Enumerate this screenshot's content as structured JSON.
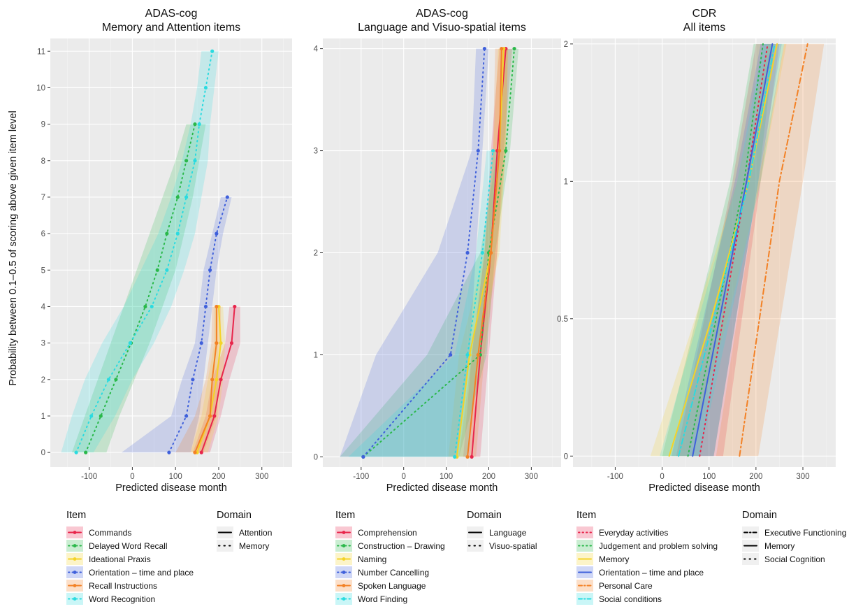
{
  "ylabel": "Probability between 0.1–0.5 of scoring above given item level",
  "legend_item_title": "Item",
  "legend_domain_title": "Domain",
  "chart_data": [
    {
      "type": "line",
      "title_line1": "ADAS-cog",
      "title_line2": "Memory and Attention items",
      "xlabel": "Predicted disease month",
      "xlim": [
        -190,
        370
      ],
      "xticks": [
        -100,
        0,
        100,
        200,
        300
      ],
      "ylim": [
        -0.4,
        11.35
      ],
      "yticks": [
        0,
        1,
        2,
        3,
        4,
        5,
        6,
        7,
        8,
        9,
        10,
        11
      ],
      "ytick_labels": [
        "0",
        "1",
        "2",
        "3",
        "4",
        "5",
        "6",
        "7",
        "8",
        "9",
        "10",
        "11"
      ],
      "grid": true,
      "domains": [
        {
          "name": "Attention",
          "dash": "solid"
        },
        {
          "name": "Memory",
          "dash": "dotted"
        }
      ],
      "series": [
        {
          "name": "Commands",
          "color": "#e8254b",
          "dash": "solid",
          "levels": [
            0,
            1,
            2,
            3,
            4
          ],
          "x": [
            160,
            190,
            205,
            230,
            237
          ],
          "lo": [
            140,
            170,
            185,
            215,
            225
          ],
          "hi": [
            180,
            205,
            225,
            250,
            250
          ]
        },
        {
          "name": "Delayed Word Recall",
          "color": "#2ab84a",
          "dash": "dotted",
          "levels": [
            0,
            1,
            2,
            3,
            4,
            5,
            6,
            7,
            8,
            9
          ],
          "x": [
            -108,
            -73,
            -38,
            -3,
            30,
            58,
            80,
            105,
            125,
            145
          ],
          "lo": [
            -140,
            -110,
            -80,
            -50,
            -20,
            10,
            40,
            70,
            100,
            125
          ],
          "hi": [
            -60,
            -30,
            5,
            40,
            70,
            100,
            120,
            140,
            155,
            170
          ]
        },
        {
          "name": "Ideational Praxis",
          "color": "#f5d327",
          "dash": "solid",
          "levels": [
            0,
            1,
            2,
            3,
            4
          ],
          "x": [
            150,
            180,
            195,
            205,
            200
          ],
          "lo": [
            135,
            160,
            175,
            190,
            190
          ],
          "hi": [
            175,
            200,
            210,
            215,
            210
          ]
        },
        {
          "name": "Orientation – time and place",
          "color": "#3f60db",
          "dash": "dotted",
          "levels": [
            0,
            1,
            2,
            3,
            4,
            5,
            6,
            7
          ],
          "x": [
            85,
            125,
            140,
            160,
            170,
            180,
            195,
            220
          ],
          "lo": [
            -25,
            90,
            115,
            145,
            155,
            165,
            185,
            205
          ],
          "hi": [
            135,
            155,
            165,
            175,
            185,
            195,
            210,
            230
          ]
        },
        {
          "name": "Recall Instructions",
          "color": "#f38125",
          "dash": "solid",
          "levels": [
            0,
            1,
            2,
            3,
            4
          ],
          "x": [
            145,
            180,
            185,
            195,
            195
          ],
          "lo": [
            100,
            145,
            170,
            183,
            185
          ],
          "hi": [
            165,
            195,
            200,
            205,
            205
          ]
        },
        {
          "name": "Word Recognition",
          "color": "#2adbe0",
          "dash": "dotted",
          "levels": [
            0,
            1,
            2,
            3,
            4,
            5,
            6,
            7,
            8,
            9,
            10,
            11
          ],
          "x": [
            -130,
            -95,
            -55,
            -5,
            45,
            80,
            105,
            125,
            145,
            155,
            170,
            185
          ],
          "lo": [
            -165,
            -140,
            -110,
            -70,
            -20,
            20,
            60,
            90,
            115,
            135,
            150,
            160
          ],
          "hi": [
            -90,
            -40,
            0,
            50,
            90,
            120,
            145,
            160,
            175,
            180,
            190,
            200
          ]
        }
      ]
    },
    {
      "type": "line",
      "title_line1": "ADAS-cog",
      "title_line2": "Language and Visuo-spatial items",
      "xlabel": "Predicted disease month",
      "xlim": [
        -190,
        370
      ],
      "xticks": [
        -100,
        0,
        100,
        200,
        300
      ],
      "ylim": [
        -0.1,
        4.1
      ],
      "yticks": [
        0,
        1,
        2,
        3,
        4
      ],
      "ytick_labels": [
        "0",
        "1",
        "2",
        "3",
        "4"
      ],
      "grid": true,
      "domains": [
        {
          "name": "Language",
          "dash": "solid"
        },
        {
          "name": "Visuo-spatial",
          "dash": "dotted"
        }
      ],
      "series": [
        {
          "name": "Comprehension",
          "color": "#e8254b",
          "dash": "solid",
          "levels": [
            0,
            1,
            2,
            3,
            4
          ],
          "x": [
            160,
            180,
            205,
            220,
            240
          ],
          "lo": [
            140,
            160,
            190,
            205,
            225
          ],
          "hi": [
            180,
            200,
            220,
            235,
            255
          ]
        },
        {
          "name": "Construction – Drawing",
          "color": "#2ab84a",
          "dash": "dotted",
          "levels": [
            0,
            1,
            2,
            3,
            4
          ],
          "x": [
            -95,
            180,
            200,
            240,
            260
          ],
          "lo": [
            -150,
            55,
            180,
            220,
            240
          ],
          "hi": [
            130,
            195,
            215,
            250,
            270
          ]
        },
        {
          "name": "Naming",
          "color": "#f5d327",
          "dash": "solid",
          "levels": [
            0,
            1,
            2,
            3,
            4
          ],
          "x": [
            125,
            155,
            205,
            225,
            235
          ],
          "lo": [
            105,
            130,
            190,
            210,
            222
          ],
          "hi": [
            150,
            175,
            225,
            240,
            245
          ]
        },
        {
          "name": "Number Cancelling",
          "color": "#3f60db",
          "dash": "dotted",
          "levels": [
            0,
            1,
            2,
            3,
            4
          ],
          "x": [
            -95,
            110,
            150,
            175,
            190
          ],
          "lo": [
            -150,
            -65,
            80,
            160,
            170
          ],
          "hi": [
            125,
            155,
            170,
            185,
            200
          ]
        },
        {
          "name": "Spoken Language",
          "color": "#f38125",
          "dash": "solid",
          "levels": [
            0,
            1,
            2,
            3,
            4
          ],
          "x": [
            150,
            175,
            205,
            225,
            230
          ],
          "lo": [
            130,
            160,
            190,
            210,
            215
          ],
          "hi": [
            170,
            190,
            220,
            240,
            245
          ]
        },
        {
          "name": "Word Finding",
          "color": "#2adbe0",
          "dash": "dotted",
          "levels": [
            0,
            1,
            2,
            3
          ],
          "x": [
            120,
            150,
            185,
            210
          ],
          "lo": [
            -130,
            120,
            170,
            195
          ],
          "hi": [
            150,
            175,
            200,
            225
          ]
        }
      ]
    },
    {
      "type": "line",
      "title_line1": "CDR",
      "title_line2": "All items",
      "xlabel": "Predicted disease month",
      "xlim": [
        -190,
        370
      ],
      "xticks": [
        -100,
        0,
        100,
        200,
        300
      ],
      "ylim": [
        -0.04,
        2.04
      ],
      "yticks": [
        0,
        0.5,
        1,
        2
      ],
      "ytick_labels": [
        "0",
        "0.5",
        "1",
        "2"
      ],
      "grid": true,
      "domains": [
        {
          "name": "Executive Functioning",
          "dash": "dashdot"
        },
        {
          "name": "Memory",
          "dash": "solid"
        },
        {
          "name": "Social Cognition",
          "dash": "dotted"
        }
      ],
      "series": [
        {
          "name": "Everyday activities",
          "color": "#e8254b",
          "dash": "dotted",
          "levels": [
            0,
            1,
            2
          ],
          "x": [
            80,
            180,
            225
          ],
          "lo": [
            30,
            150,
            200
          ],
          "hi": [
            130,
            210,
            250
          ]
        },
        {
          "name": "Judgement and problem solving",
          "color": "#2ab84a",
          "dash": "dotted",
          "levels": [
            0,
            1,
            2
          ],
          "x": [
            55,
            175,
            215
          ],
          "lo": [
            0,
            145,
            195
          ],
          "hi": [
            110,
            205,
            240
          ]
        },
        {
          "name": "Memory",
          "color": "#f5d327",
          "dash": "solid",
          "levels": [
            0,
            0.5,
            1,
            2
          ],
          "x": [
            15,
            105,
            185,
            245
          ],
          "lo": [
            -25,
            70,
            160,
            225
          ],
          "hi": [
            55,
            140,
            210,
            265
          ]
        },
        {
          "name": "Orientation – time and place",
          "color": "#3f60db",
          "dash": "solid",
          "levels": [
            0,
            1,
            2
          ],
          "x": [
            65,
            180,
            235
          ],
          "lo": [
            20,
            155,
            210
          ],
          "hi": [
            110,
            205,
            255
          ]
        },
        {
          "name": "Personal Care",
          "color": "#f38125",
          "dash": "dashdot",
          "levels": [
            0,
            1,
            2
          ],
          "x": [
            165,
            250,
            310
          ],
          "lo": [
            115,
            205,
            260
          ],
          "hi": [
            205,
            300,
            345
          ]
        },
        {
          "name": "Social conditions",
          "color": "#2adbe0",
          "dash": "dashdot",
          "levels": [
            0,
            1,
            2
          ],
          "x": [
            35,
            185,
            240
          ],
          "lo": [
            -5,
            160,
            215
          ],
          "hi": [
            80,
            210,
            260
          ]
        }
      ]
    }
  ]
}
